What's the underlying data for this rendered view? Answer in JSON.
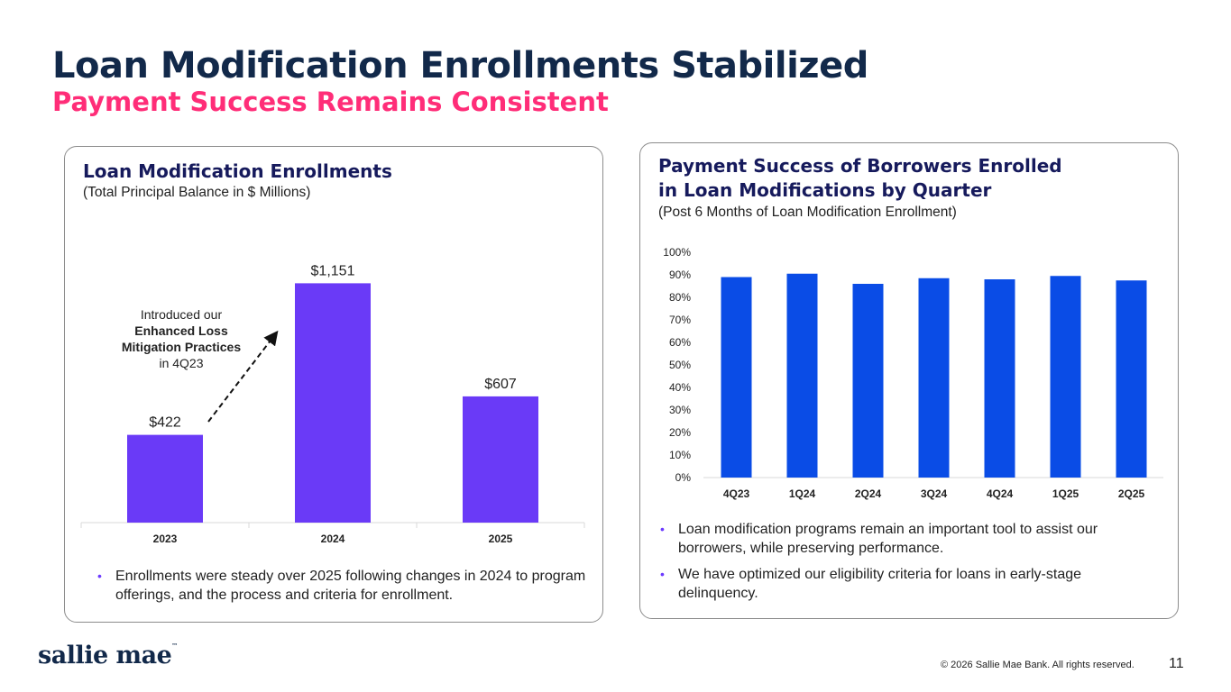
{
  "page": {
    "title": "Loan Modification Enrollments Stabilized",
    "subtitle": "Payment Success Remains Consistent",
    "copyright": "© 2026 Sallie Mae Bank. All rights reserved.",
    "page_number": "11",
    "logo_text": "sallie mae",
    "logo_mark": "™"
  },
  "left_panel": {
    "title": "Loan Modification Enrollments",
    "note": "(Total Principal Balance in $ Millions)",
    "annotation": {
      "line1": "Introduced our",
      "line2": "Enhanced Loss",
      "line3": "Mitigation Practices",
      "line4": "in 4Q23"
    },
    "bullets": [
      "Enrollments were steady over 2025 following changes in 2024 to program offerings, and the process and criteria for enrollment."
    ]
  },
  "right_panel": {
    "title_line1": "Payment Success of Borrowers Enrolled",
    "title_line2": "in Loan Modifications by Quarter",
    "note": "(Post 6 Months of Loan Modification Enrollment)",
    "bullets": [
      "Loan modification programs remain an important tool to assist our borrowers, while preserving performance.",
      "We have optimized our eligibility criteria for loans in early-stage delinquency."
    ]
  },
  "colors": {
    "title": "#12294a",
    "subtitle": "#ff2d78",
    "bar_left": "#6a3af7",
    "bar_right": "#0a4ce6",
    "panel_title": "#161a5c"
  },
  "chart_data": [
    {
      "type": "bar",
      "title": "Loan Modification Enrollments",
      "ylabel": "Total Principal Balance in $ Millions",
      "categories": [
        "2023",
        "2024",
        "2025"
      ],
      "values": [
        422,
        1151,
        607
      ],
      "data_labels": [
        "$422",
        "$1,151",
        "$607"
      ],
      "ylim": [
        0,
        1300
      ],
      "grid": false
    },
    {
      "type": "bar",
      "title": "Payment Success of Borrowers Enrolled in Loan Modifications by Quarter",
      "categories": [
        "4Q23",
        "1Q24",
        "2Q24",
        "3Q24",
        "4Q24",
        "1Q25",
        "2Q25"
      ],
      "values": [
        89,
        90.5,
        86,
        88.5,
        88,
        89.5,
        87.5
      ],
      "ylim": [
        0,
        100
      ],
      "yticks": [
        "0%",
        "10%",
        "20%",
        "30%",
        "40%",
        "50%",
        "60%",
        "70%",
        "80%",
        "90%",
        "100%"
      ],
      "grid": false
    }
  ]
}
